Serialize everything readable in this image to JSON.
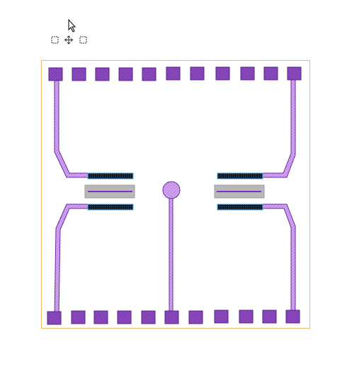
{
  "colors": {
    "background": "#ffffff",
    "cell_boundary": "#f5b96a",
    "pad_fill": "#8c4bbd",
    "pad_stroke": "#5b1f90",
    "trace_fill": "#d3a6f0",
    "trace_stroke": "#6a2aa6",
    "electrode_fill": "#101820",
    "electrode_edge": "#4aa4e8",
    "heater_box": "#b8b8b8",
    "heater_line": "#7a33c4",
    "cursor": "#000000",
    "handle": "#333333"
  },
  "icons": {
    "cursor": "arrow-cursor-icon",
    "move": "move-icon",
    "handle": "selection-handle-icon"
  },
  "layout_view": {
    "top_pad_count": 11,
    "bottom_pad_count": 11,
    "electrode_count": 4,
    "heater_count": 2,
    "probe_pad_count": 1
  }
}
